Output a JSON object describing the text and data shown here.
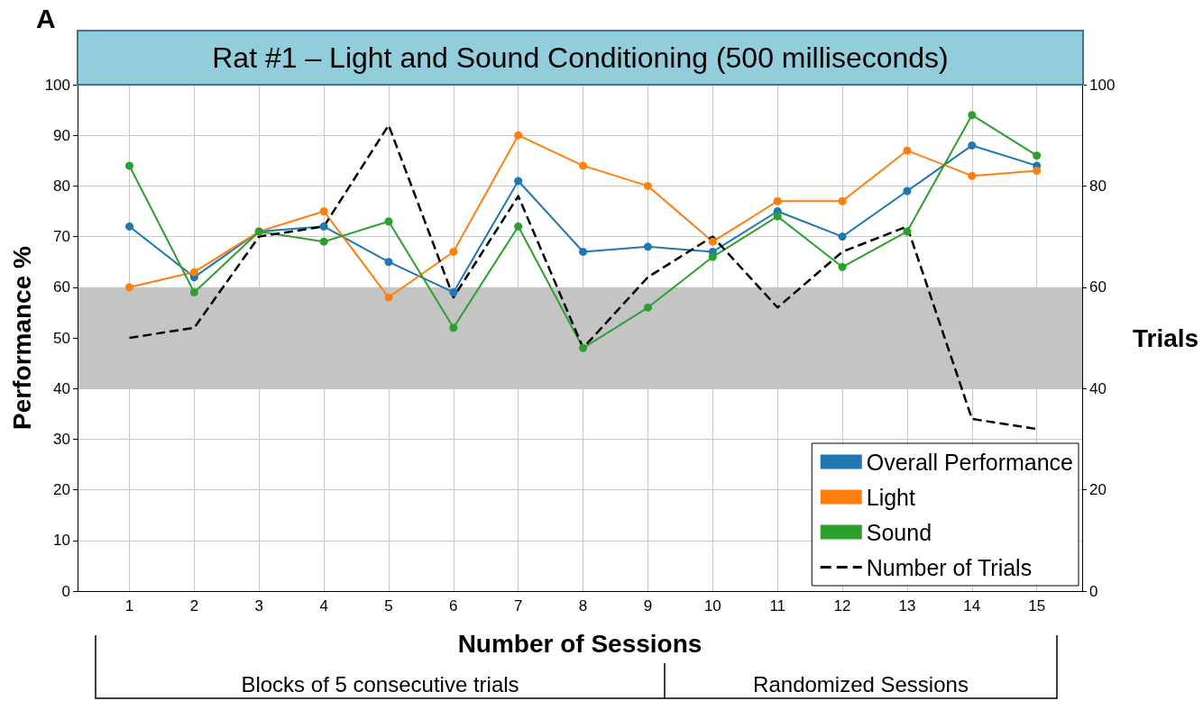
{
  "chart_data": {
    "type": "line",
    "title": "Rat #1 – Light and Sound Conditioning (500 milliseconds)",
    "xlabel": "Number of Sessions",
    "ylabel": "Performance %",
    "y2label": "Trials",
    "x": [
      1,
      2,
      3,
      4,
      5,
      6,
      7,
      8,
      9,
      10,
      11,
      12,
      13,
      14,
      15
    ],
    "series": [
      {
        "name": "Overall Performance",
        "color": "#1f77b4",
        "marker": "circle",
        "line_style": "solid",
        "values": [
          72,
          62,
          71,
          72,
          65,
          59,
          81,
          67,
          68,
          67,
          75,
          70,
          79,
          88,
          84
        ]
      },
      {
        "name": "Light",
        "color": "#ff7f0e",
        "marker": "circle",
        "line_style": "solid",
        "values": [
          60,
          63,
          71,
          75,
          58,
          67,
          90,
          84,
          80,
          69,
          77,
          77,
          87,
          82,
          83
        ]
      },
      {
        "name": "Sound",
        "color": "#2ca02c",
        "marker": "circle",
        "line_style": "solid",
        "values": [
          84,
          59,
          71,
          69,
          73,
          52,
          72,
          48,
          56,
          66,
          74,
          64,
          71,
          94,
          86
        ]
      },
      {
        "name": "Number of Trials",
        "color": "#000000",
        "marker": "none",
        "line_style": "dashed",
        "axis": "y2",
        "values": [
          50,
          52,
          70,
          72,
          92,
          58,
          78,
          48,
          62,
          70,
          56,
          67,
          72,
          34,
          32
        ]
      }
    ],
    "xlim": [
      0.2,
      15.7
    ],
    "xticks": [
      1,
      2,
      3,
      4,
      5,
      6,
      7,
      8,
      9,
      10,
      11,
      12,
      13,
      14,
      15
    ],
    "ylim": [
      0,
      100
    ],
    "yticks": [
      0,
      10,
      20,
      30,
      40,
      50,
      60,
      70,
      80,
      90,
      100
    ],
    "y2lim": [
      0,
      100
    ],
    "y2ticks": [
      0,
      20,
      40,
      60,
      80,
      100
    ],
    "bands": [
      {
        "axis": "y",
        "from": 40,
        "to": 60,
        "color": "#c4c4c4"
      }
    ],
    "grid": true,
    "legend": "bottom right",
    "annotations": [
      "A",
      "Blocks of 5 consecutive trials",
      "Randomized Sessions"
    ]
  }
}
